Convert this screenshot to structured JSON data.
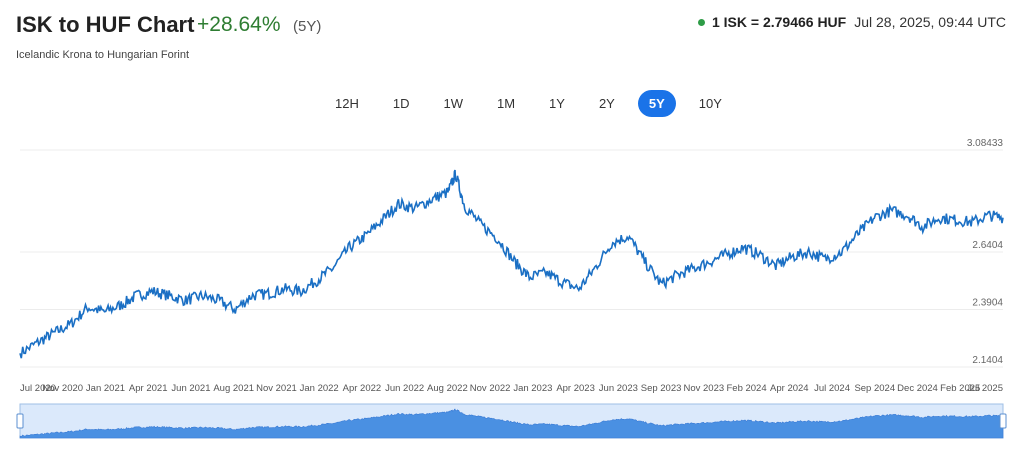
{
  "header": {
    "title": "ISK to HUF Chart",
    "change": "+28.64%",
    "period": "(5Y)",
    "subtitle": "Icelandic Krona to Hungarian Forint",
    "rate": "1 ISK = 2.79466 HUF",
    "timestamp": "Jul 28, 2025, 09:44 UTC"
  },
  "tabs": [
    {
      "label": "12H",
      "active": false
    },
    {
      "label": "1D",
      "active": false
    },
    {
      "label": "1W",
      "active": false
    },
    {
      "label": "1M",
      "active": false
    },
    {
      "label": "1Y",
      "active": false
    },
    {
      "label": "2Y",
      "active": false
    },
    {
      "label": "5Y",
      "active": true
    },
    {
      "label": "10Y",
      "active": false
    }
  ],
  "colors": {
    "line": "#1a6fc4",
    "navigator_fill": "#4a90e2",
    "positive": "#2e7d32",
    "accent": "#1a73e8"
  },
  "chart_data": {
    "type": "line",
    "title": "",
    "xlabel": "",
    "ylabel": "",
    "ylim": [
      2.1404,
      3.08433
    ],
    "yticks": [
      "3.08433",
      "2.6404",
      "2.3904",
      "2.1404"
    ],
    "xticks": [
      "Jul 2020",
      "Nov 2020",
      "Jan 2021",
      "Apr 2021",
      "Jun 2021",
      "Aug 2021",
      "Nov 2021",
      "Jan 2022",
      "Apr 2022",
      "Jun 2022",
      "Aug 2022",
      "Nov 2022",
      "Jan 2023",
      "Apr 2023",
      "Jun 2023",
      "Sep 2023",
      "Nov 2023",
      "Feb 2024",
      "Apr 2024",
      "Jul 2024",
      "Sep 2024",
      "Dec 2024",
      "Feb 2025",
      "Jul 2025"
    ],
    "grid": true,
    "series": [
      {
        "x": [
          "2020-07-28",
          "2020-09-01",
          "2020-10-01",
          "2020-11-01",
          "2020-12-01",
          "2021-01-01",
          "2021-02-01",
          "2021-03-01",
          "2021-04-01",
          "2021-05-01",
          "2021-06-01",
          "2021-07-01",
          "2021-08-01",
          "2021-09-01",
          "2021-10-01",
          "2021-11-01",
          "2021-12-01",
          "2022-01-01",
          "2022-02-01",
          "2022-03-01",
          "2022-04-01",
          "2022-05-01",
          "2022-06-01",
          "2022-07-01",
          "2022-08-01",
          "2022-09-01",
          "2022-10-01",
          "2022-10-15",
          "2022-11-01",
          "2022-12-01",
          "2023-01-01",
          "2023-02-01",
          "2023-03-01",
          "2023-04-01",
          "2023-05-01",
          "2023-06-01",
          "2023-07-01",
          "2023-08-01",
          "2023-09-01",
          "2023-10-01",
          "2023-11-01",
          "2023-12-01",
          "2024-01-01",
          "2024-02-01",
          "2024-03-01",
          "2024-04-01",
          "2024-05-01",
          "2024-06-01",
          "2024-07-01",
          "2024-08-01",
          "2024-09-01",
          "2024-10-01",
          "2024-11-01",
          "2024-12-01",
          "2025-01-01",
          "2025-02-01",
          "2025-03-01",
          "2025-04-01",
          "2025-05-01",
          "2025-06-01",
          "2025-07-01",
          "2025-07-28"
        ],
        "values": [
          2.2,
          2.25,
          2.29,
          2.33,
          2.4,
          2.38,
          2.41,
          2.45,
          2.47,
          2.45,
          2.43,
          2.45,
          2.43,
          2.39,
          2.45,
          2.46,
          2.48,
          2.47,
          2.52,
          2.57,
          2.66,
          2.71,
          2.78,
          2.85,
          2.83,
          2.87,
          2.9,
          2.98,
          2.84,
          2.76,
          2.7,
          2.6,
          2.53,
          2.55,
          2.51,
          2.48,
          2.57,
          2.68,
          2.71,
          2.6,
          2.5,
          2.54,
          2.57,
          2.6,
          2.63,
          2.66,
          2.63,
          2.58,
          2.62,
          2.64,
          2.61,
          2.64,
          2.72,
          2.79,
          2.82,
          2.8,
          2.75,
          2.79,
          2.78,
          2.77,
          2.8,
          2.79
        ]
      }
    ]
  }
}
